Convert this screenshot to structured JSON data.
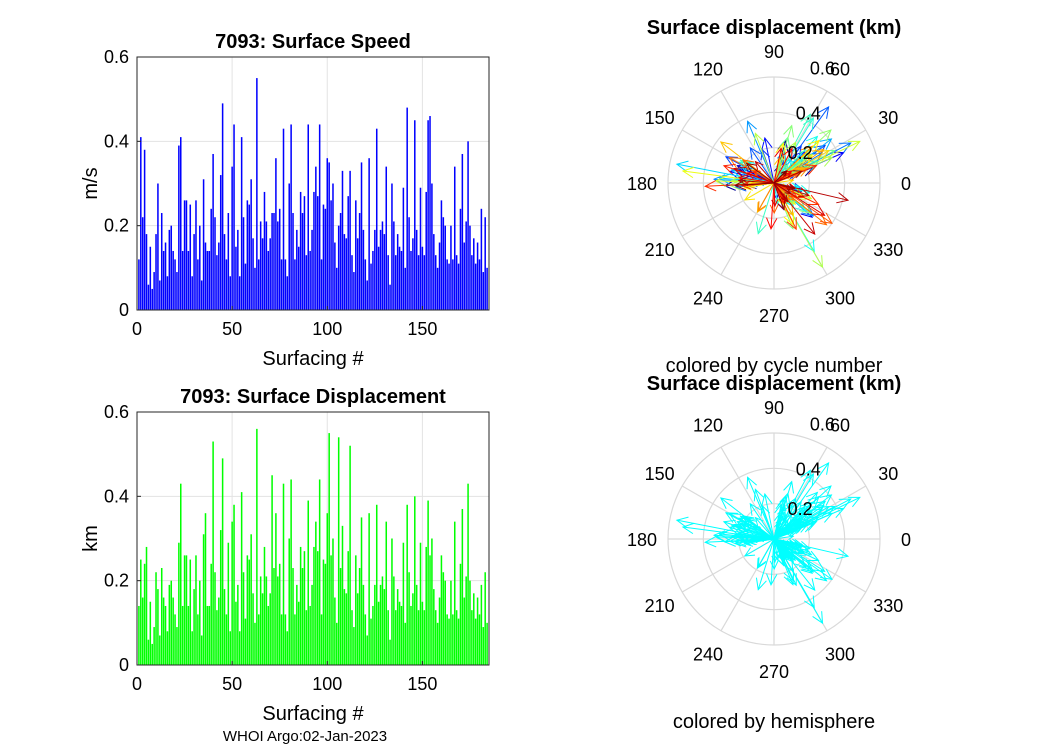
{
  "footer": "WHOI Argo:02-Jan-2023",
  "chart_data": [
    {
      "id": "speed",
      "type": "bar",
      "title": "7093: Surface Speed",
      "xlabel": "Surfacing #",
      "ylabel": "m/s",
      "xlim": [
        0,
        185
      ],
      "ylim": [
        0,
        0.6
      ],
      "xticks": [
        "0",
        "50",
        "100",
        "150"
      ],
      "yticks": [
        "0",
        "0.2",
        "0.4",
        "0.6"
      ],
      "grid": true,
      "color": "#0000ff",
      "values": [
        0.12,
        0.41,
        0.22,
        0.38,
        0.18,
        0.06,
        0.15,
        0.05,
        0.09,
        0.18,
        0.3,
        0.07,
        0.23,
        0.14,
        0.16,
        0.08,
        0.19,
        0.2,
        0.14,
        0.12,
        0.09,
        0.39,
        0.41,
        0.14,
        0.26,
        0.26,
        0.14,
        0.25,
        0.08,
        0.18,
        0.26,
        0.12,
        0.2,
        0.07,
        0.31,
        0.16,
        0.14,
        0.14,
        0.24,
        0.37,
        0.22,
        0.13,
        0.16,
        0.32,
        0.49,
        0.18,
        0.12,
        0.23,
        0.08,
        0.34,
        0.44,
        0.15,
        0.19,
        0.08,
        0.41,
        0.22,
        0.11,
        0.26,
        0.25,
        0.31,
        0.17,
        0.1,
        0.55,
        0.12,
        0.21,
        0.17,
        0.28,
        0.21,
        0.14,
        0.17,
        0.23,
        0.23,
        0.36,
        0.21,
        0.24,
        0.12,
        0.43,
        0.12,
        0.08,
        0.3,
        0.44,
        0.23,
        0.12,
        0.19,
        0.15,
        0.28,
        0.23,
        0.27,
        0.13,
        0.44,
        0.14,
        0.19,
        0.28,
        0.34,
        0.27,
        0.44,
        0.12,
        0.25,
        0.24,
        0.36,
        0.35,
        0.26,
        0.3,
        0.16,
        0.1,
        0.2,
        0.23,
        0.33,
        0.18,
        0.17,
        0.27,
        0.33,
        0.13,
        0.09,
        0.26,
        0.17,
        0.23,
        0.35,
        0.19,
        0.12,
        0.07,
        0.36,
        0.11,
        0.14,
        0.19,
        0.43,
        0.15,
        0.19,
        0.21,
        0.18,
        0.34,
        0.13,
        0.06,
        0.3,
        0.21,
        0.13,
        0.18,
        0.15,
        0.14,
        0.29,
        0.1,
        0.48,
        0.22,
        0.14,
        0.17,
        0.45,
        0.19,
        0.13,
        0.29,
        0.15,
        0.13,
        0.28,
        0.45,
        0.46,
        0.3,
        0.18,
        0.13,
        0.1,
        0.16,
        0.26,
        0.22,
        0.2,
        0.12,
        0.11,
        0.2,
        0.12,
        0.34,
        0.13,
        0.11,
        0.24,
        0.37,
        0.16,
        0.21,
        0.4,
        0.2,
        0.13,
        0.17,
        0.11,
        0.16,
        0.12,
        0.24,
        0.09,
        0.22,
        0.1
      ],
      "position": "top-left"
    },
    {
      "id": "displacement",
      "type": "bar",
      "title": "7093: Surface Displacement",
      "xlabel": "Surfacing #",
      "ylabel": "km",
      "xlim": [
        0,
        185
      ],
      "ylim": [
        0,
        0.6
      ],
      "xticks": [
        "0",
        "50",
        "100",
        "150"
      ],
      "yticks": [
        "0",
        "0.2",
        "0.4",
        "0.6"
      ],
      "grid": true,
      "color": "#00ff00",
      "values": [
        0.14,
        0.25,
        0.16,
        0.24,
        0.28,
        0.06,
        0.15,
        0.05,
        0.09,
        0.22,
        0.18,
        0.07,
        0.23,
        0.16,
        0.14,
        0.08,
        0.19,
        0.2,
        0.16,
        0.12,
        0.09,
        0.29,
        0.43,
        0.14,
        0.26,
        0.26,
        0.14,
        0.25,
        0.08,
        0.18,
        0.26,
        0.12,
        0.2,
        0.07,
        0.31,
        0.36,
        0.14,
        0.14,
        0.24,
        0.53,
        0.22,
        0.13,
        0.16,
        0.32,
        0.49,
        0.18,
        0.12,
        0.29,
        0.08,
        0.34,
        0.38,
        0.15,
        0.19,
        0.08,
        0.41,
        0.22,
        0.11,
        0.26,
        0.25,
        0.31,
        0.17,
        0.1,
        0.56,
        0.12,
        0.21,
        0.17,
        0.28,
        0.21,
        0.14,
        0.17,
        0.45,
        0.23,
        0.36,
        0.21,
        0.24,
        0.12,
        0.43,
        0.12,
        0.08,
        0.3,
        0.44,
        0.23,
        0.12,
        0.19,
        0.15,
        0.28,
        0.23,
        0.27,
        0.13,
        0.39,
        0.14,
        0.19,
        0.28,
        0.34,
        0.27,
        0.44,
        0.12,
        0.25,
        0.24,
        0.36,
        0.55,
        0.26,
        0.3,
        0.16,
        0.1,
        0.54,
        0.23,
        0.33,
        0.18,
        0.17,
        0.27,
        0.52,
        0.13,
        0.09,
        0.26,
        0.17,
        0.23,
        0.35,
        0.19,
        0.12,
        0.07,
        0.36,
        0.11,
        0.14,
        0.19,
        0.38,
        0.15,
        0.19,
        0.21,
        0.18,
        0.34,
        0.13,
        0.06,
        0.3,
        0.21,
        0.13,
        0.18,
        0.15,
        0.14,
        0.29,
        0.1,
        0.38,
        0.22,
        0.14,
        0.17,
        0.4,
        0.19,
        0.13,
        0.29,
        0.15,
        0.13,
        0.28,
        0.39,
        0.26,
        0.3,
        0.18,
        0.13,
        0.1,
        0.16,
        0.26,
        0.22,
        0.2,
        0.12,
        0.11,
        0.2,
        0.12,
        0.34,
        0.13,
        0.11,
        0.24,
        0.37,
        0.16,
        0.21,
        0.43,
        0.2,
        0.13,
        0.17,
        0.11,
        0.16,
        0.12,
        0.19,
        0.09,
        0.22,
        0.1
      ],
      "position": "bottom-left"
    },
    {
      "id": "compass-cycle",
      "type": "compass",
      "title": "Surface displacement (km)",
      "caption": "colored by cycle number",
      "rmax": 0.6,
      "rticks": [
        "0.2",
        "0.4",
        "0.6"
      ],
      "angle_ticks": [
        "0",
        "30",
        "60",
        "90",
        "120",
        "150",
        "180",
        "210",
        "240",
        "270",
        "300",
        "330"
      ],
      "color_mode": "cycle",
      "position": "top-right"
    },
    {
      "id": "compass-hemisphere",
      "type": "compass",
      "title": "Surface displacement (km)",
      "caption": "colored by hemisphere",
      "rmax": 0.6,
      "rticks": [
        "0.2",
        "0.4",
        "0.6"
      ],
      "angle_ticks": [
        "0",
        "30",
        "60",
        "90",
        "120",
        "150",
        "180",
        "210",
        "240",
        "270",
        "300",
        "330"
      ],
      "color_mode": "single",
      "color": "#00ffff",
      "position": "bottom-right"
    }
  ]
}
